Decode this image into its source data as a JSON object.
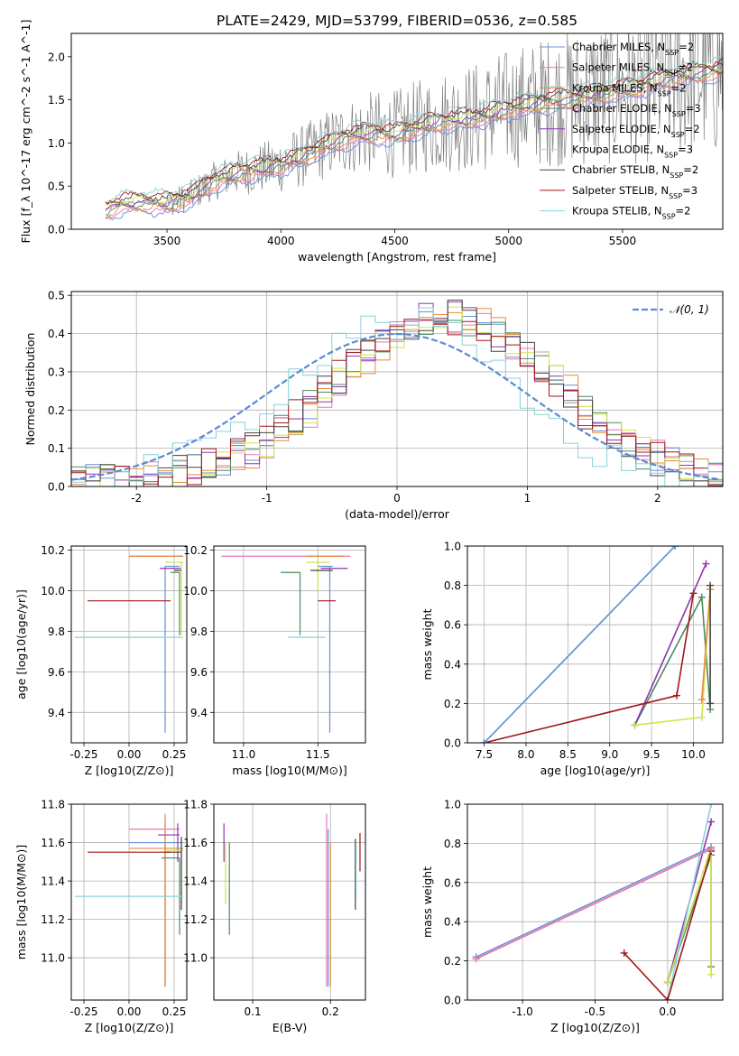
{
  "title": "PLATE=2429, MJD=53799, FIBERID=0536, z=0.585",
  "colors": {
    "Chabrier MILES": "#6a8fd8",
    "Salpeter MILES": "#e47ab5",
    "Kroupa MILES": "#e98b3a",
    "Chabrier ELODIE": "#4e8a5e",
    "Salpeter ELODIE": "#8e35b0",
    "Kroupa ELODIE": "#cde64a",
    "Chabrier STELIB": "#444444",
    "Salpeter STELIB": "#a01818",
    "Kroupa STELIB": "#88d2d8",
    "data": "#808080",
    "normal": "#5b8bd6"
  },
  "chart_data": [
    {
      "type": "line",
      "name": "spectrum",
      "xlabel": "wavelength [Angstrom, rest frame]",
      "ylabel": "Flux [f_λ 10^-17 erg cm^-2 s^-1 A^-1]",
      "xlim": [
        3080,
        5940
      ],
      "ylim": [
        0,
        2.27
      ],
      "xticks": [
        3500,
        4000,
        4500,
        5000,
        5500
      ],
      "yticks": [
        0.0,
        0.5,
        1.0,
        1.5,
        2.0
      ],
      "legend": [
        "Chabrier MILES, N_SSP=2",
        "Salpeter MILES, N_SSP=2",
        "Kroupa MILES, N_SSP=2",
        "Chabrier ELODIE, N_SSP=3",
        "Salpeter ELODIE, N_SSP=2",
        "Kroupa ELODIE, N_SSP=3",
        "Chabrier STELIB, N_SSP=2",
        "Salpeter STELIB, N_SSP=3",
        "Kroupa STELIB, N_SSP=2"
      ],
      "legend_placement": "upper right",
      "model_continuum": {
        "x": [
          3230,
          3300,
          3400,
          3500,
          3600,
          3700,
          3800,
          3900,
          4000,
          4100,
          4200,
          4300,
          4400,
          4500,
          4600,
          4700,
          4800,
          4900,
          5000,
          5100,
          5200,
          5300,
          5400,
          5500,
          5600,
          5700,
          5800,
          5940
        ],
        "y": [
          0.22,
          0.3,
          0.32,
          0.3,
          0.38,
          0.55,
          0.65,
          0.7,
          0.75,
          0.85,
          0.98,
          1.08,
          1.12,
          1.1,
          1.18,
          1.25,
          1.28,
          1.32,
          1.4,
          1.45,
          1.5,
          1.52,
          1.58,
          1.62,
          1.68,
          1.75,
          1.8,
          1.85
        ]
      },
      "data_spectrum": {
        "noise_start": 3500,
        "max_y": 2.27
      }
    },
    {
      "type": "line",
      "name": "residual histograms",
      "xlabel": "(data-model)/error",
      "ylabel": "Normed distribution",
      "xlim": [
        -2.5,
        2.5
      ],
      "ylim": [
        0,
        0.51
      ],
      "xticks": [
        -2,
        -1,
        0,
        1,
        2
      ],
      "yticks": [
        0.0,
        0.1,
        0.2,
        0.3,
        0.4,
        0.5
      ],
      "legend": [
        "N(0,1)"
      ],
      "legend_placement": "upper right",
      "hist_template": [
        0.02,
        0.02,
        0.03,
        0.04,
        0.05,
        0.06,
        0.07,
        0.08,
        0.1,
        0.11,
        0.13,
        0.15,
        0.17,
        0.19,
        0.21,
        0.23,
        0.26,
        0.29,
        0.32,
        0.34,
        0.37,
        0.39,
        0.41,
        0.43,
        0.44,
        0.45,
        0.45,
        0.44,
        0.42,
        0.4,
        0.37,
        0.34,
        0.31,
        0.28,
        0.25,
        0.22,
        0.19,
        0.16,
        0.14,
        0.12,
        0.1,
        0.09,
        0.08,
        0.07,
        0.06
      ]
    },
    {
      "type": "scatter",
      "name": "age vs Z",
      "xlabel": "Z [log10(Z/Z⊙)]",
      "ylabel": "age [log10(age/yr)]",
      "xlim": [
        -0.32,
        0.32
      ],
      "ylim": [
        9.25,
        10.22
      ],
      "xticks": [
        -0.25,
        0.0,
        0.25
      ],
      "yticks": [
        9.4,
        9.6,
        9.8,
        10.0,
        10.2
      ],
      "points": [
        {
          "model": "Chabrier MILES",
          "x": 0.2,
          "y": 10.12,
          "xe": [
            0.2,
            0.28
          ],
          "ye": [
            9.3,
            10.12
          ]
        },
        {
          "model": "Salpeter MILES",
          "x": 0.2,
          "y": 10.17,
          "xe": [
            0.0,
            0.3
          ],
          "ye": [
            10.17,
            10.17
          ]
        },
        {
          "model": "Kroupa MILES",
          "x": 0.25,
          "y": 10.17,
          "xe": [
            0.0,
            0.3
          ],
          "ye": [
            10.17,
            10.17
          ]
        },
        {
          "model": "Chabrier ELODIE",
          "x": 0.28,
          "y": 10.09,
          "xe": [
            0.23,
            0.28
          ],
          "ye": [
            9.78,
            10.09
          ]
        },
        {
          "model": "Salpeter ELODIE",
          "x": 0.25,
          "y": 10.11,
          "xe": [
            0.17,
            0.29
          ],
          "ye": [
            10.11,
            10.11
          ]
        },
        {
          "model": "Kroupa ELODIE",
          "x": 0.29,
          "y": 10.14,
          "xe": [
            0.2,
            0.3
          ],
          "ye": [
            9.78,
            10.14
          ]
        },
        {
          "model": "Chabrier STELIB",
          "x": 0.28,
          "y": 10.1,
          "xe": [
            0.25,
            0.29
          ],
          "ye": [
            10.1,
            10.1
          ]
        },
        {
          "model": "Salpeter STELIB",
          "x": 0.22,
          "y": 9.95,
          "xe": [
            -0.23,
            0.23
          ],
          "ye": [
            9.95,
            9.95
          ]
        },
        {
          "model": "Kroupa STELIB",
          "x": 0.3,
          "y": 9.77,
          "xe": [
            -0.3,
            0.3
          ],
          "ye": [
            9.77,
            9.77
          ]
        }
      ]
    },
    {
      "type": "scatter",
      "name": "age vs mass",
      "xlabel": "mass [log10(M/M⊙)]",
      "ylabel": "",
      "xlim": [
        10.8,
        11.82
      ],
      "ylim": [
        9.25,
        10.22
      ],
      "xticks": [
        11.0,
        11.5
      ],
      "yticks": [
        9.4,
        9.6,
        9.8,
        10.0,
        10.2
      ],
      "points": [
        {
          "model": "Chabrier MILES",
          "x": 11.58,
          "y": 10.12,
          "xe": [
            11.5,
            11.6
          ],
          "ye": [
            9.3,
            10.12
          ]
        },
        {
          "model": "Salpeter MILES",
          "x": 11.65,
          "y": 10.17,
          "xe": [
            10.85,
            11.72
          ],
          "ye": [
            10.17,
            10.17
          ]
        },
        {
          "model": "Kroupa MILES",
          "x": 11.6,
          "y": 10.17,
          "xe": [
            11.42,
            11.68
          ],
          "ye": [
            10.17,
            10.17
          ]
        },
        {
          "model": "Chabrier ELODIE",
          "x": 11.38,
          "y": 10.09,
          "xe": [
            11.25,
            11.38
          ],
          "ye": [
            9.78,
            10.09
          ]
        },
        {
          "model": "Salpeter ELODIE",
          "x": 11.6,
          "y": 10.11,
          "xe": [
            11.52,
            11.7
          ],
          "ye": [
            10.11,
            10.11
          ]
        },
        {
          "model": "Kroupa ELODIE",
          "x": 11.5,
          "y": 10.14,
          "xe": [
            11.42,
            11.58
          ],
          "ye": [
            10.0,
            10.14
          ]
        },
        {
          "model": "Chabrier STELIB",
          "x": 11.55,
          "y": 10.1,
          "xe": [
            11.45,
            11.6
          ],
          "ye": [
            10.1,
            10.1
          ]
        },
        {
          "model": "Salpeter STELIB",
          "x": 11.55,
          "y": 9.95,
          "xe": [
            11.5,
            11.62
          ],
          "ye": [
            9.95,
            9.95
          ]
        },
        {
          "model": "Kroupa STELIB",
          "x": 11.32,
          "y": 9.77,
          "xe": [
            11.3,
            11.55
          ],
          "ye": [
            9.77,
            9.77
          ]
        }
      ]
    },
    {
      "type": "line",
      "name": "mass weight vs age",
      "xlabel": "age [log10(age/yr)]",
      "ylabel": "mass weight",
      "xlim": [
        7.3,
        10.35
      ],
      "ylim": [
        0,
        1.0
      ],
      "xticks": [
        7.5,
        8.0,
        8.5,
        9.0,
        9.5,
        10.0
      ],
      "yticks": [
        0.0,
        0.2,
        0.4,
        0.6,
        0.8,
        1.0
      ],
      "series": [
        {
          "model": "Chabrier ELODIE",
          "x": [
            9.3,
            10.1,
            10.2
          ],
          "y": [
            0.09,
            0.74,
            0.17
          ]
        },
        {
          "model": "Salpeter ELODIE",
          "x": [
            9.3,
            10.15
          ],
          "y": [
            0.09,
            0.91
          ]
        },
        {
          "model": "Kroupa ELODIE",
          "x": [
            9.3,
            10.1,
            10.2
          ],
          "y": [
            0.09,
            0.13,
            0.78
          ]
        },
        {
          "model": "Kroupa MILES",
          "x": [
            10.1,
            10.2
          ],
          "y": [
            0.22,
            0.78
          ]
        },
        {
          "model": "Chabrier STELIB",
          "x": [
            10.2,
            10.2
          ],
          "y": [
            0.2,
            0.8
          ]
        },
        {
          "model": "Salpeter STELIB",
          "x": [
            7.5,
            9.8,
            10.0
          ],
          "y": [
            0.0,
            0.24,
            0.76
          ]
        },
        {
          "model": "Kroupa STELIB",
          "x": [
            7.5,
            9.78
          ],
          "y": [
            0.0,
            1.0
          ]
        },
        {
          "model": "Chabrier MILES",
          "x": [
            7.5,
            9.78
          ],
          "y": [
            0.0,
            1.0
          ]
        }
      ]
    },
    {
      "type": "scatter",
      "name": "mass vs Z",
      "xlabel": "Z [log10(Z/Z⊙)]",
      "ylabel": "mass [log10(M/M⊙)]",
      "xlim": [
        -0.32,
        0.32
      ],
      "ylim": [
        10.78,
        11.8
      ],
      "xticks": [
        -0.25,
        0.0,
        0.25
      ],
      "yticks": [
        11.0,
        11.2,
        11.4,
        11.6,
        11.8
      ],
      "points": [
        {
          "model": "Chabrier MILES",
          "x": 0.2,
          "y": 11.6,
          "xe": [
            0.0,
            0.3
          ],
          "ye": [
            10.85,
            11.6
          ]
        },
        {
          "model": "Salpeter MILES",
          "x": 0.2,
          "y": 11.67,
          "xe": [
            0.0,
            0.28
          ],
          "ye": [
            10.85,
            11.75
          ]
        },
        {
          "model": "Kroupa MILES",
          "x": 0.2,
          "y": 11.57,
          "xe": [
            0.0,
            0.3
          ],
          "ye": [
            10.85,
            11.72
          ]
        },
        {
          "model": "Chabrier ELODIE",
          "x": 0.28,
          "y": 11.52,
          "xe": [
            0.18,
            0.28
          ],
          "ye": [
            11.12,
            11.52
          ]
        },
        {
          "model": "Salpeter ELODIE",
          "x": 0.27,
          "y": 11.64,
          "xe": [
            0.16,
            0.28
          ],
          "ye": [
            11.5,
            11.7
          ]
        },
        {
          "model": "Kroupa ELODIE",
          "x": 0.29,
          "y": 11.56,
          "xe": [
            0.2,
            0.3
          ],
          "ye": [
            11.25,
            11.62
          ]
        },
        {
          "model": "Chabrier STELIB",
          "x": 0.29,
          "y": 11.55,
          "xe": [
            0.2,
            0.29
          ],
          "ye": [
            11.25,
            11.63
          ]
        },
        {
          "model": "Salpeter STELIB",
          "x": 0.22,
          "y": 11.55,
          "xe": [
            -0.23,
            0.23
          ],
          "ye": [
            11.55,
            11.55
          ]
        },
        {
          "model": "Kroupa STELIB",
          "x": 0.3,
          "y": 11.32,
          "xe": [
            -0.3,
            0.3
          ],
          "ye": [
            11.32,
            11.32
          ]
        }
      ]
    },
    {
      "type": "scatter",
      "name": "mass vs E(B-V)",
      "xlabel": "E(B-V)",
      "ylabel": "",
      "xlim": [
        0.05,
        0.245
      ],
      "ylim": [
        10.78,
        11.8
      ],
      "xticks": [
        0.1,
        0.2
      ],
      "yticks": [
        11.0,
        11.2,
        11.4,
        11.6,
        11.8
      ],
      "points": [
        {
          "model": "Chabrier MILES",
          "x": 0.197,
          "y": 11.6,
          "ye": [
            10.85,
            11.67
          ]
        },
        {
          "model": "Salpeter MILES",
          "x": 0.195,
          "y": 11.67,
          "ye": [
            10.85,
            11.75
          ]
        },
        {
          "model": "Kroupa MILES",
          "x": 0.2,
          "y": 11.57,
          "ye": [
            10.85,
            11.6
          ]
        },
        {
          "model": "Chabrier ELODIE",
          "x": 0.07,
          "y": 11.52,
          "ye": [
            11.12,
            11.6
          ]
        },
        {
          "model": "Salpeter ELODIE",
          "x": 0.063,
          "y": 11.64,
          "ye": [
            11.5,
            11.7
          ]
        },
        {
          "model": "Kroupa ELODIE",
          "x": 0.065,
          "y": 11.56,
          "ye": [
            11.28,
            11.6
          ]
        },
        {
          "model": "Chabrier STELIB",
          "x": 0.232,
          "y": 11.55,
          "ye": [
            11.25,
            11.62
          ]
        },
        {
          "model": "Salpeter STELIB",
          "x": 0.238,
          "y": 11.55,
          "ye": [
            11.45,
            11.65
          ]
        },
        {
          "model": "Kroupa STELIB",
          "x": 0.233,
          "y": 11.32,
          "ye": [
            11.3,
            11.6
          ]
        }
      ]
    },
    {
      "type": "line",
      "name": "mass weight vs Z",
      "xlabel": "Z [log10(Z/Z⊙)]",
      "ylabel": "mass weight",
      "xlim": [
        -1.38,
        0.38
      ],
      "ylim": [
        0,
        1.0
      ],
      "xticks": [
        -1.0,
        -0.5,
        0.0
      ],
      "yticks": [
        0.0,
        0.2,
        0.4,
        0.6,
        0.8,
        1.0
      ],
      "series": [
        {
          "model": "Chabrier ELODIE",
          "x": [
            0.0,
            0.3,
            0.3
          ],
          "y": [
            0.09,
            0.74,
            0.17
          ]
        },
        {
          "model": "Salpeter ELODIE",
          "x": [
            0.0,
            0.3
          ],
          "y": [
            0.09,
            0.91
          ]
        },
        {
          "model": "Kroupa ELODIE",
          "x": [
            0.0,
            0.3,
            0.3
          ],
          "y": [
            0.09,
            0.78,
            0.13
          ]
        },
        {
          "model": "Kroupa STELIB",
          "x": [
            0.0,
            0.3
          ],
          "y": [
            0.0,
            1.0
          ]
        },
        {
          "model": "Salpeter STELIB",
          "x": [
            -0.3,
            0.0,
            0.3
          ],
          "y": [
            0.24,
            0.0,
            0.76
          ]
        },
        {
          "model": "Chabrier MILES",
          "x": [
            -1.32,
            0.3
          ],
          "y": [
            0.22,
            0.78
          ]
        },
        {
          "model": "Kroupa MILES",
          "x": [
            -1.32,
            0.3
          ],
          "y": [
            0.21,
            0.77
          ]
        },
        {
          "model": "Salpeter MILES",
          "x": [
            -1.32,
            0.3
          ],
          "y": [
            0.21,
            0.77
          ]
        }
      ]
    }
  ]
}
